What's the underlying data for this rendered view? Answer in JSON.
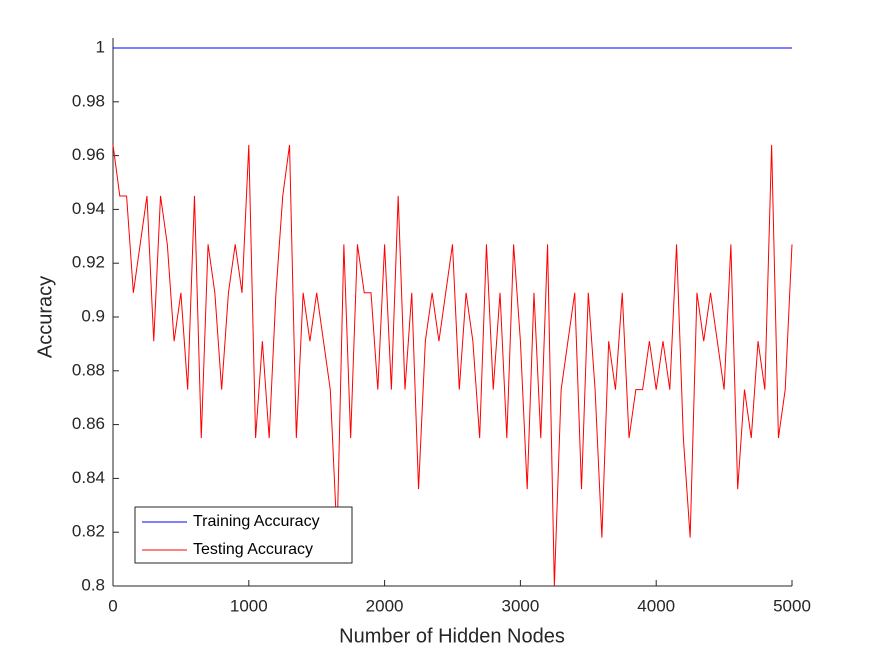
{
  "chart_data": {
    "type": "line",
    "x_label": "Number of Hidden Nodes",
    "y_label": "Accuracy",
    "x": [
      0,
      50,
      100,
      150,
      200,
      250,
      300,
      350,
      400,
      450,
      500,
      550,
      600,
      650,
      700,
      750,
      800,
      850,
      900,
      950,
      1000,
      1050,
      1100,
      1150,
      1200,
      1250,
      1300,
      1350,
      1400,
      1450,
      1500,
      1550,
      1600,
      1650,
      1700,
      1750,
      1800,
      1850,
      1900,
      1950,
      2000,
      2050,
      2100,
      2150,
      2200,
      2250,
      2300,
      2350,
      2400,
      2450,
      2500,
      2550,
      2600,
      2650,
      2700,
      2750,
      2800,
      2850,
      2900,
      2950,
      3000,
      3050,
      3100,
      3150,
      3200,
      3250,
      3300,
      3350,
      3400,
      3450,
      3500,
      3550,
      3600,
      3650,
      3700,
      3750,
      3800,
      3850,
      3900,
      3950,
      4000,
      4050,
      4100,
      4150,
      4200,
      4250,
      4300,
      4350,
      4400,
      4450,
      4500,
      4550,
      4600,
      4650,
      4700,
      4750,
      4800,
      4850,
      4900,
      4950,
      5000
    ],
    "series": [
      {
        "name": "Training Accuracy",
        "color": "#0000ff",
        "values": [
          1,
          1,
          1,
          1,
          1,
          1,
          1,
          1,
          1,
          1,
          1,
          1,
          1,
          1,
          1,
          1,
          1,
          1,
          1,
          1,
          1,
          1,
          1,
          1,
          1,
          1,
          1,
          1,
          1,
          1,
          1,
          1,
          1,
          1,
          1,
          1,
          1,
          1,
          1,
          1,
          1,
          1,
          1,
          1,
          1,
          1,
          1,
          1,
          1,
          1,
          1,
          1,
          1,
          1,
          1,
          1,
          1,
          1,
          1,
          1,
          1,
          1,
          1,
          1,
          1,
          1,
          1,
          1,
          1,
          1,
          1,
          1,
          1,
          1,
          1,
          1,
          1,
          1,
          1,
          1,
          1,
          1,
          1,
          1,
          1,
          1,
          1,
          1,
          1,
          1,
          1,
          1,
          1,
          1,
          1,
          1,
          1,
          1,
          1,
          1,
          1
        ]
      },
      {
        "name": "Testing Accuracy",
        "color": "#ff0000",
        "values": [
          0.964,
          0.945,
          0.945,
          0.909,
          0.927,
          0.945,
          0.891,
          0.945,
          0.927,
          0.891,
          0.909,
          0.873,
          0.945,
          0.855,
          0.927,
          0.909,
          0.873,
          0.909,
          0.927,
          0.909,
          0.964,
          0.855,
          0.891,
          0.855,
          0.909,
          0.945,
          0.964,
          0.855,
          0.909,
          0.891,
          0.909,
          0.891,
          0.873,
          0.818,
          0.927,
          0.855,
          0.927,
          0.909,
          0.909,
          0.873,
          0.927,
          0.873,
          0.945,
          0.873,
          0.909,
          0.836,
          0.891,
          0.909,
          0.891,
          0.909,
          0.927,
          0.873,
          0.909,
          0.891,
          0.855,
          0.927,
          0.873,
          0.909,
          0.855,
          0.927,
          0.891,
          0.836,
          0.909,
          0.855,
          0.927,
          0.8,
          0.873,
          0.891,
          0.909,
          0.836,
          0.909,
          0.873,
          0.818,
          0.891,
          0.873,
          0.909,
          0.855,
          0.873,
          0.873,
          0.891,
          0.873,
          0.891,
          0.873,
          0.927,
          0.855,
          0.818,
          0.909,
          0.891,
          0.909,
          0.891,
          0.873,
          0.927,
          0.836,
          0.873,
          0.855,
          0.891,
          0.873,
          0.964,
          0.855,
          0.873,
          0.927
        ]
      }
    ],
    "xlim": [
      0,
      5000
    ],
    "xticks": [
      0,
      1000,
      2000,
      3000,
      4000,
      5000
    ],
    "ylim": [
      0.8,
      1
    ],
    "yticks": [
      0.8,
      0.82,
      0.84,
      0.86,
      0.88,
      0.9,
      0.92,
      0.94,
      0.96,
      0.98,
      1
    ],
    "grid": false,
    "legend_position": "lower-left"
  }
}
